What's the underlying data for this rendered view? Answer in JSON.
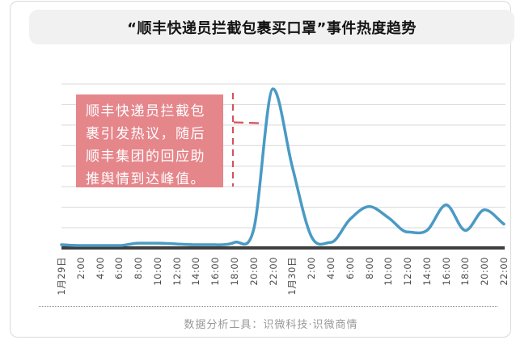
{
  "header": {
    "title": "“顺丰快递员拦截包裹买口罩”事件热度趋势"
  },
  "annotation": {
    "lines": [
      "顺丰快递员拦截包",
      "裹引发热议，随后",
      "顺丰集团的回应助",
      "推舆情到达峰值。"
    ]
  },
  "footer": {
    "credit": "数据分析工具：识微科技·识微商情"
  },
  "colors": {
    "line": "#4a9ac4",
    "annotation_bg": "#e5868b",
    "annotation_text": "#ffffff",
    "marker_dash": "#d5525c",
    "grid": "#d8d8d8",
    "axis": "#3f3f3f",
    "title_bg": "#f1f1f2",
    "tick_text": "#4a4a4a",
    "footer_text": "#999999",
    "card_border": "#d9d9d9"
  },
  "chart_data": {
    "type": "line",
    "title": "“顺丰快递员拦截包裹买口罩”事件热度趋势",
    "categories": [
      "1月29日",
      "2:00",
      "4:00",
      "6:00",
      "8:00",
      "10:00",
      "12:00",
      "14:00",
      "16:00",
      "18:00",
      "20:00",
      "22:00",
      "1月30日",
      "2:00",
      "4:00",
      "6:00",
      "8:00",
      "10:00",
      "12:00",
      "14:00",
      "16:00",
      "18:00",
      "20:00",
      "22:00"
    ],
    "values": [
      2,
      1.5,
      1.5,
      1.5,
      3,
      3,
      2.5,
      2,
      2,
      3.5,
      12,
      100,
      51,
      7,
      3.5,
      18,
      26,
      19,
      10,
      11,
      27,
      11,
      24,
      15
    ],
    "units": "relative heat (no y-axis tick labels shown)",
    "xlabel": "",
    "ylabel": "",
    "ylim": [
      0,
      100
    ],
    "y_tick_labels": [],
    "grid": true,
    "gridline_count": 8,
    "legend": "none",
    "peak": {
      "category": "22:00 (1月29日)",
      "value": 100
    },
    "event_marker": {
      "type": "vertical-dashed-line",
      "at_category": "18:00 (1月29日)",
      "connects_to": "annotation-callout"
    }
  }
}
